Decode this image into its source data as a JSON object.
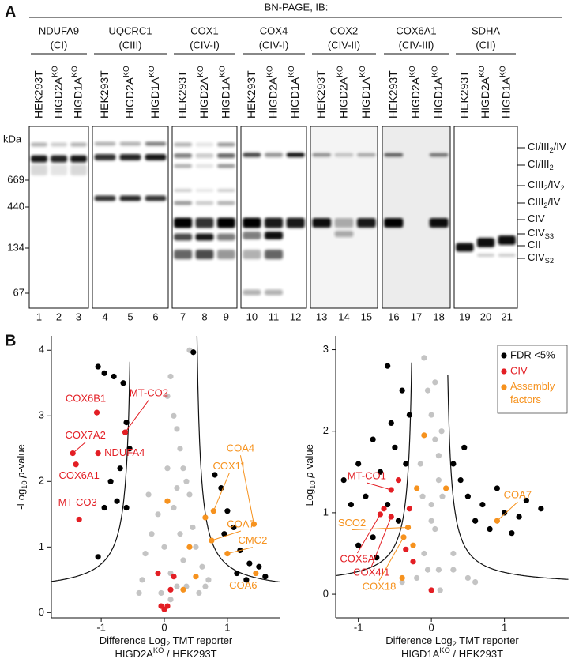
{
  "figure": {
    "label": "A",
    "title": "BN-PAGE, IB:",
    "groups": [
      {
        "antibody": "NDUFA9",
        "complex": "(CI)",
        "lanes": [
          [
            "HEK293T"
          ],
          [
            "HIGD2A",
            "KO"
          ],
          [
            "HIGD1A",
            "KO"
          ]
        ]
      },
      {
        "antibody": "UQCRC1",
        "complex": "(CIII)",
        "lanes": [
          [
            "HEK293T"
          ],
          [
            "HIGD2A",
            "KO"
          ],
          [
            "HIGD1A",
            "KO"
          ]
        ]
      },
      {
        "antibody": "COX1",
        "complex": "(CIV-I)",
        "lanes": [
          [
            "HEK293T"
          ],
          [
            "HIGD2A",
            "KO"
          ],
          [
            "HIGD1A",
            "KO"
          ]
        ]
      },
      {
        "antibody": "COX4",
        "complex": "(CIV-I)",
        "lanes": [
          [
            "HEK293T"
          ],
          [
            "HIGD2A",
            "KO"
          ],
          [
            "HIGD1A",
            "KO"
          ]
        ]
      },
      {
        "antibody": "COX2",
        "complex": "(CIV-II)",
        "lanes": [
          [
            "HEK293T"
          ],
          [
            "HIGD2A",
            "KO"
          ],
          [
            "HIGD1A",
            "KO"
          ]
        ]
      },
      {
        "antibody": "COX6A1",
        "complex": "(CIV-III)",
        "lanes": [
          [
            "HEK293T"
          ],
          [
            "HIGD2A",
            "KO"
          ],
          [
            "HIGD1A",
            "KO"
          ]
        ]
      },
      {
        "antibody": "SDHA",
        "complex": "(CII)",
        "lanes": [
          [
            "HEK293T"
          ],
          [
            "HIGD2A",
            "KO"
          ],
          [
            "HIGD1A",
            "KO"
          ]
        ]
      }
    ],
    "kda_label": "kDa",
    "markers": [
      669,
      440,
      134,
      67
    ],
    "complexes": [
      [
        "CI/III",
        "2",
        "/IV"
      ],
      [
        "CI/III",
        "2"
      ],
      [
        "CIII",
        "2",
        "/IV",
        "2"
      ],
      [
        "CIII",
        "2",
        "/IV"
      ],
      [
        "CIV"
      ],
      [
        "CIV",
        "S3"
      ],
      [
        "CII"
      ],
      [
        "CIV",
        "S2"
      ]
    ],
    "lane_numbers": [
      1,
      2,
      3,
      4,
      5,
      6,
      7,
      8,
      9,
      10,
      11,
      12,
      13,
      14,
      15,
      16,
      17,
      18,
      19,
      20,
      21
    ],
    "panel_b_label": "B"
  },
  "chart_data": [
    {
      "type": "scatter",
      "y_label": [
        "-Log",
        "10",
        " p",
        "-value"
      ],
      "x_label": [
        "Difference Log",
        "2",
        " TMT reporter"
      ],
      "x_label2": [
        "HIGD2A",
        "KO",
        " / HEK293T"
      ],
      "xlim": [
        -1.79,
        1.84
      ],
      "ylim": [
        -0.08,
        4.22
      ],
      "xticks": [
        -1,
        0,
        1
      ],
      "yticks": [
        0,
        1,
        2,
        3,
        4
      ],
      "series": [
        {
          "color": "#c4c4c4",
          "x": [
            0.05,
            0.1,
            0.15,
            0.2,
            0.25,
            0.3,
            0.35,
            0.4,
            -0.1,
            -0.2,
            -0.3,
            0.0,
            0.1,
            0.2,
            0.3,
            0.45,
            0.5,
            0.6,
            0.7,
            -0.35,
            -0.25,
            0.15,
            0.25,
            0.05,
            -0.05,
            0.35,
            0.55,
            0.65,
            -0.4,
            0.1,
            0.4,
            0.2
          ],
          "values": [
            3.3,
            3.6,
            3.0,
            2.8,
            2.5,
            2.2,
            2.0,
            1.8,
            1.5,
            1.2,
            0.9,
            1.0,
            0.6,
            0.4,
            0.8,
            1.3,
            1.0,
            0.7,
            0.5,
            0.5,
            1.8,
            1.6,
            1.2,
            2.2,
            0.3,
            0.4,
            0.3,
            0.4,
            0.3,
            0.2,
            4.0,
            1.9
          ]
        },
        {
          "color": "#000000",
          "x": [
            -1.05,
            -0.95,
            -0.8,
            -0.65,
            -0.6,
            -0.55,
            -0.7,
            -0.85,
            -0.75,
            -0.6,
            -0.95,
            -1.05,
            0.46,
            0.8,
            0.9,
            1.0,
            1.1,
            1.2,
            1.35,
            1.5,
            1.6,
            1.15,
            0.95,
            1.3
          ],
          "values": [
            3.75,
            3.65,
            3.6,
            3.5,
            2.9,
            2.5,
            2.2,
            2.0,
            1.7,
            1.6,
            1.6,
            0.85,
            3.97,
            2.1,
            1.9,
            1.55,
            1.3,
            0.95,
            0.75,
            0.7,
            0.55,
            0.6,
            1.2,
            0.5
          ]
        },
        {
          "color": "#e31e24",
          "x": [
            -1.07,
            -0.62,
            -1.45,
            -1.05,
            -1.4,
            -1.35,
            0.0,
            -0.05,
            0.05,
            0.1,
            -0.1,
            0.15
          ],
          "values": [
            3.05,
            2.75,
            2.43,
            2.43,
            2.26,
            1.42,
            0.05,
            0.1,
            0.1,
            0.35,
            0.6,
            0.55
          ],
          "labels": [
            "COX6B1",
            "MT-CO2",
            "COX7A2",
            "NDUFA4",
            "COX6A1",
            "MT-CO3",
            null,
            null,
            null,
            null,
            null,
            null
          ]
        },
        {
          "color": "#f6921e",
          "x": [
            1.42,
            0.78,
            0.75,
            1.0,
            1.45,
            0.05,
            0.5,
            0.4,
            0.3,
            0.65
          ],
          "values": [
            1.35,
            1.55,
            1.1,
            0.9,
            0.6,
            1.7,
            0.55,
            1.0,
            0.35,
            1.45
          ],
          "labels": [
            "COA4",
            "COX11",
            "COA7",
            "CMC2",
            "COA6",
            null,
            null,
            null,
            null,
            null
          ]
        }
      ]
    },
    {
      "type": "scatter",
      "y_label": [
        "-Log",
        "10",
        " p",
        "-value"
      ],
      "x_label": [
        "Difference Log",
        "2",
        " TMT reporter"
      ],
      "x_label2": [
        "HIGD1A",
        "KO",
        " / HEK293T"
      ],
      "xlim": [
        -1.31,
        1.88
      ],
      "ylim": [
        -0.29,
        3.17
      ],
      "xticks": [
        -1,
        0,
        1
      ],
      "yticks": [
        0,
        1,
        2,
        3
      ],
      "series": [
        {
          "name": "FDR <5%",
          "color": "#000000",
          "x": [
            -0.6,
            -0.4,
            -0.3,
            -0.8,
            -0.5,
            -1.0,
            -1.2,
            -0.7,
            -0.9,
            -1.1,
            -0.8,
            -1.0,
            -0.6,
            -0.35,
            -0.45,
            0.4,
            0.5,
            0.7,
            0.9,
            1.0,
            1.2,
            1.5,
            0.6,
            0.8,
            1.1,
            0.45,
            0.3,
            1.3,
            -0.55,
            -0.75
          ],
          "values": [
            2.8,
            2.5,
            2.2,
            1.9,
            1.8,
            1.6,
            1.4,
            1.5,
            1.2,
            1.1,
            0.7,
            0.6,
            1.1,
            1.6,
            0.9,
            1.4,
            1.2,
            1.1,
            1.3,
            1.0,
            0.95,
            1.05,
            0.9,
            0.8,
            0.75,
            1.8,
            1.6,
            1.15,
            2.1,
            0.45
          ]
        },
        {
          "name": "CIV",
          "color": "#e31e24",
          "x": [
            -0.55,
            -0.7,
            -0.55,
            -0.45,
            -0.35,
            -0.25,
            0.0,
            -0.65,
            -0.3
          ],
          "values": [
            1.28,
            0.98,
            0.95,
            1.4,
            0.55,
            0.4,
            0.05,
            1.05,
            1.05
          ],
          "labels": [
            "MT-CO1",
            "COX5A",
            "COX4I1",
            null,
            null,
            null,
            null,
            null,
            null
          ]
        },
        {
          "name": "Assembly factors",
          "color": "#f6921e",
          "x": [
            -0.32,
            -0.38,
            0.9,
            -0.1,
            -0.2,
            0.2,
            -0.4,
            -0.25
          ],
          "values": [
            0.82,
            0.7,
            0.9,
            1.95,
            1.3,
            1.3,
            0.2,
            0.6
          ],
          "labels": [
            "SCO2",
            "COX18",
            "COA7",
            null,
            null,
            null,
            null,
            null
          ]
        },
        {
          "color": "#c4c4c4",
          "x": [
            -0.1,
            -0.05,
            0.0,
            0.05,
            -0.15,
            0.1,
            0.0,
            0.05,
            -0.1,
            0.1,
            -0.2,
            0.3,
            0.5,
            -0.4,
            0.15,
            0.0,
            0.1,
            -0.05,
            0.6,
            0.3,
            0.12,
            -0.12,
            0.05,
            0.14
          ],
          "values": [
            2.9,
            2.5,
            2.2,
            1.9,
            1.6,
            1.4,
            1.1,
            0.8,
            0.5,
            0.3,
            0.2,
            0.3,
            0.2,
            0.15,
            1.2,
            0.9,
            1.7,
            0.3,
            0.15,
            0.5,
            0.05,
            1.2,
            2.6,
            2.0
          ]
        }
      ]
    }
  ]
}
